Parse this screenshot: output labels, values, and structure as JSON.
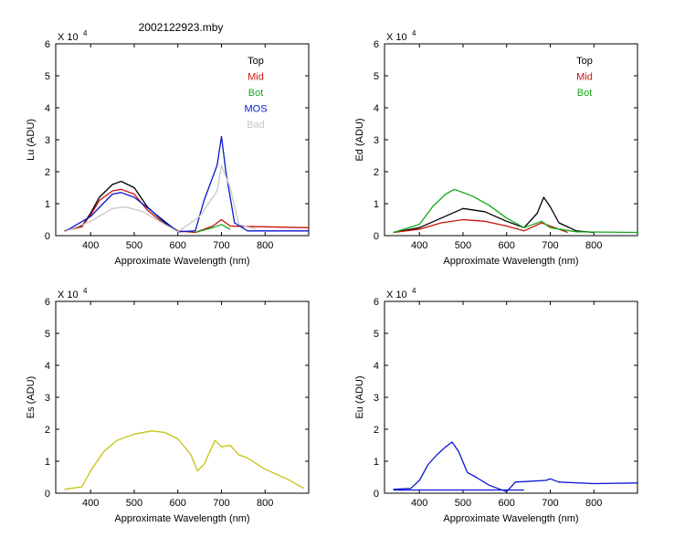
{
  "figure_title": "2002122923.mby",
  "colors": {
    "top": "#000000",
    "mid": "#c8140a",
    "bot": "#12a81a",
    "mos": "#0a16d2",
    "bad": "#c8c8c8",
    "es": "#c4c414",
    "eu": "#0a16d2"
  },
  "chart_data": [
    {
      "id": "lu",
      "type": "line",
      "ylabel": "Lu (ADU)",
      "xlabel": "Approximate Wavelength (nm)",
      "scale_label": "X 10",
      "scale_exp": "4",
      "xlim": [
        320,
        900
      ],
      "ylim": [
        0,
        6
      ],
      "xticks": [
        400,
        500,
        600,
        700,
        800
      ],
      "yticks": [
        0,
        1,
        2,
        3,
        4,
        5,
        6
      ],
      "legend": [
        "Top",
        "Mid",
        "Bot",
        "MOS",
        "Bad"
      ],
      "legend_position": "top-right",
      "series": [
        {
          "name": "Top",
          "values": [
            [
              340,
              0.15
            ],
            [
              380,
              0.3
            ],
            [
              400,
              0.7
            ],
            [
              420,
              1.2
            ],
            [
              450,
              1.6
            ],
            [
              470,
              1.7
            ],
            [
              500,
              1.5
            ],
            [
              530,
              0.9
            ],
            [
              570,
              0.4
            ],
            [
              600,
              0.15
            ]
          ]
        },
        {
          "name": "Mid",
          "values": [
            [
              340,
              0.15
            ],
            [
              380,
              0.28
            ],
            [
              400,
              0.65
            ],
            [
              420,
              1.1
            ],
            [
              450,
              1.4
            ],
            [
              470,
              1.45
            ],
            [
              500,
              1.3
            ],
            [
              530,
              0.8
            ],
            [
              570,
              0.35
            ],
            [
              600,
              0.15
            ],
            [
              640,
              0.1
            ],
            [
              680,
              0.3
            ],
            [
              700,
              0.5
            ],
            [
              720,
              0.3
            ],
            [
              900,
              0.25
            ]
          ]
        },
        {
          "name": "Bot",
          "values": [
            [
              640,
              0.1
            ],
            [
              680,
              0.25
            ],
            [
              700,
              0.35
            ],
            [
              720,
              0.2
            ]
          ]
        },
        {
          "name": "MOS",
          "values": [
            [
              340,
              0.12
            ],
            [
              400,
              0.6
            ],
            [
              450,
              1.3
            ],
            [
              470,
              1.35
            ],
            [
              500,
              1.2
            ],
            [
              600,
              0.12
            ],
            [
              640,
              0.15
            ],
            [
              660,
              1.1
            ],
            [
              690,
              2.2
            ],
            [
              700,
              3.1
            ],
            [
              710,
              2.0
            ],
            [
              730,
              0.4
            ],
            [
              760,
              0.15
            ],
            [
              900,
              0.15
            ]
          ]
        },
        {
          "name": "Bad",
          "values": [
            [
              340,
              0.12
            ],
            [
              400,
              0.45
            ],
            [
              450,
              0.85
            ],
            [
              480,
              0.9
            ],
            [
              520,
              0.75
            ],
            [
              600,
              0.12
            ],
            [
              650,
              0.6
            ],
            [
              690,
              1.4
            ],
            [
              700,
              2.2
            ],
            [
              720,
              1.5
            ],
            [
              740,
              0.35
            ],
            [
              780,
              0.2
            ]
          ]
        }
      ]
    },
    {
      "id": "ed",
      "type": "line",
      "ylabel": "Ed  (ADU)",
      "xlabel": "Approximate Wavelength (nm)",
      "scale_label": "X 10",
      "scale_exp": "4",
      "xlim": [
        320,
        900
      ],
      "ylim": [
        0,
        6
      ],
      "xticks": [
        400,
        500,
        600,
        700,
        800
      ],
      "yticks": [
        0,
        1,
        2,
        3,
        4,
        5,
        6
      ],
      "legend": [
        "Top",
        "Mid",
        "Bot"
      ],
      "legend_position": "top-right",
      "series": [
        {
          "name": "Top",
          "values": [
            [
              340,
              0.1
            ],
            [
              400,
              0.25
            ],
            [
              450,
              0.55
            ],
            [
              500,
              0.85
            ],
            [
              550,
              0.75
            ],
            [
              600,
              0.45
            ],
            [
              640,
              0.25
            ],
            [
              670,
              0.7
            ],
            [
              685,
              1.2
            ],
            [
              700,
              0.9
            ],
            [
              720,
              0.4
            ],
            [
              760,
              0.15
            ],
            [
              800,
              0.1
            ]
          ]
        },
        {
          "name": "Mid",
          "values": [
            [
              340,
              0.1
            ],
            [
              400,
              0.2
            ],
            [
              450,
              0.4
            ],
            [
              500,
              0.5
            ],
            [
              550,
              0.45
            ],
            [
              600,
              0.3
            ],
            [
              640,
              0.15
            ],
            [
              680,
              0.4
            ],
            [
              700,
              0.3
            ],
            [
              740,
              0.1
            ]
          ]
        },
        {
          "name": "Bot",
          "values": [
            [
              340,
              0.1
            ],
            [
              400,
              0.35
            ],
            [
              430,
              0.9
            ],
            [
              460,
              1.3
            ],
            [
              480,
              1.45
            ],
            [
              520,
              1.25
            ],
            [
              560,
              0.95
            ],
            [
              600,
              0.55
            ],
            [
              640,
              0.25
            ],
            [
              680,
              0.45
            ],
            [
              700,
              0.25
            ],
            [
              760,
              0.12
            ],
            [
              900,
              0.1
            ]
          ]
        }
      ]
    },
    {
      "id": "es",
      "type": "line",
      "ylabel": "Es  (ADU)",
      "xlabel": "Approximate Wavelength (nm)",
      "scale_label": "X 10",
      "scale_exp": "4",
      "xlim": [
        320,
        900
      ],
      "ylim": [
        0,
        6
      ],
      "xticks": [
        400,
        500,
        600,
        700,
        800
      ],
      "yticks": [
        0,
        1,
        2,
        3,
        4,
        5,
        6
      ],
      "series": [
        {
          "values": [
            [
              340,
              0.12
            ],
            [
              380,
              0.2
            ],
            [
              400,
              0.7
            ],
            [
              430,
              1.3
            ],
            [
              460,
              1.65
            ],
            [
              500,
              1.85
            ],
            [
              540,
              1.95
            ],
            [
              570,
              1.9
            ],
            [
              600,
              1.7
            ],
            [
              630,
              1.2
            ],
            [
              645,
              0.7
            ],
            [
              660,
              0.9
            ],
            [
              685,
              1.65
            ],
            [
              700,
              1.45
            ],
            [
              720,
              1.5
            ],
            [
              740,
              1.2
            ],
            [
              760,
              1.1
            ],
            [
              800,
              0.75
            ],
            [
              850,
              0.45
            ],
            [
              890,
              0.15
            ]
          ]
        }
      ]
    },
    {
      "id": "eu",
      "type": "line",
      "ylabel": "Eu  (ADU)",
      "xlabel": "Approximate Wavelength (nm)",
      "scale_label": "X 10",
      "scale_exp": "4",
      "xlim": [
        320,
        900
      ],
      "ylim": [
        0,
        6
      ],
      "xticks": [
        400,
        500,
        600,
        700,
        800
      ],
      "yticks": [
        0,
        1,
        2,
        3,
        4,
        5,
        6
      ],
      "series": [
        {
          "values": [
            [
              340,
              0.12
            ],
            [
              380,
              0.15
            ],
            [
              400,
              0.4
            ],
            [
              420,
              0.9
            ],
            [
              440,
              1.2
            ],
            [
              460,
              1.45
            ],
            [
              475,
              1.6
            ],
            [
              490,
              1.3
            ],
            [
              510,
              0.65
            ],
            [
              530,
              0.5
            ],
            [
              560,
              0.25
            ],
            [
              600,
              0.05
            ],
            [
              620,
              0.35
            ],
            [
              690,
              0.4
            ],
            [
              700,
              0.45
            ],
            [
              720,
              0.35
            ],
            [
              800,
              0.3
            ],
            [
              900,
              0.32
            ]
          ]
        },
        {
          "values": [
            [
              340,
              0.1
            ],
            [
              640,
              0.1
            ]
          ]
        }
      ]
    }
  ]
}
